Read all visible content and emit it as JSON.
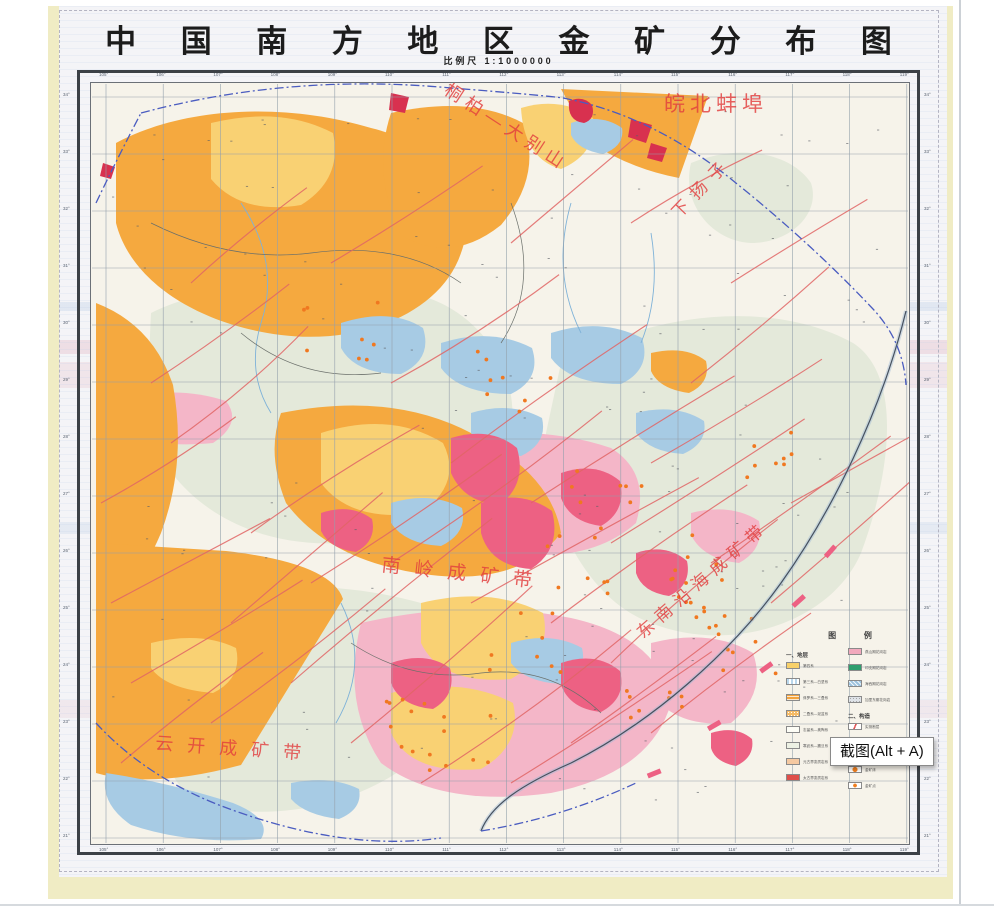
{
  "page": {
    "title": "中 国 南 方 地 区 金 矿 分 布 图",
    "scale_label": "比例尺 1:1000000"
  },
  "map_labels": {
    "wanbei": "皖北蚌埠",
    "tongbai": "桐柏—大别山",
    "xiayangzi": "下扬子",
    "nanling": "南岭成矿带",
    "dongnan": "东南沿海成矿带",
    "yunkai": "云开成矿带"
  },
  "graticule": {
    "lon": [
      "105°",
      "106°",
      "107°",
      "108°",
      "109°",
      "110°",
      "111°",
      "112°",
      "113°",
      "114°",
      "115°",
      "116°",
      "117°",
      "118°",
      "119°"
    ],
    "lat": [
      "34°",
      "33°",
      "32°",
      "31°",
      "30°",
      "29°",
      "28°",
      "27°",
      "26°",
      "25°",
      "24°",
      "23°",
      "22°",
      "21°"
    ]
  },
  "legend": {
    "title": "图 例",
    "left_sections": [
      {
        "header": "一、地层",
        "items": [
          {
            "swatch": "q",
            "label": "第四系"
          },
          {
            "swatch": "tertiary",
            "label": "第三系—白垩系"
          },
          {
            "swatch": "jura",
            "label": "侏罗系—三叠系"
          },
          {
            "swatch": "perm",
            "label": "二叠系—泥盆系"
          },
          {
            "swatch": "sil",
            "label": "志留系—奥陶系"
          },
          {
            "swatch": "camb",
            "label": "寒武系—震旦系"
          },
          {
            "swatch": "prot",
            "label": "元古界变质岩系"
          },
          {
            "swatch": "arch",
            "label": "太古界变质岩系"
          }
        ]
      }
    ],
    "right_sections": [
      {
        "header": "",
        "items": [
          {
            "swatch": "granite-pink",
            "label": "燕山期花岗岩"
          },
          {
            "swatch": "granite-green",
            "label": "印支期花岗岩"
          },
          {
            "swatch": "granite-blue",
            "label": "海西期花岗岩"
          },
          {
            "swatch": "granite-gray",
            "label": "加里东期花岗岩"
          }
        ]
      },
      {
        "header": "二、构造",
        "items": [
          {
            "swatch": "fault-solid",
            "label": "实测断层"
          },
          {
            "swatch": "fault-dashed",
            "label": "推测断层"
          }
        ]
      },
      {
        "header": "三、矿产",
        "items": [
          {
            "swatch": "gold-deposit",
            "label": "金矿床"
          },
          {
            "swatch": "gold-point",
            "label": "金矿点"
          }
        ]
      }
    ]
  },
  "tooltip": {
    "label": "截图(Alt + A)"
  },
  "colors": {
    "orange": "#f5a93f",
    "yellow": "#f9d173",
    "blue": "#a7cbe4",
    "pink": "#f4b6c8",
    "hot_pink": "#ed6183",
    "crimson": "#d8314f",
    "fault_red": "#e06565",
    "boundary_blue": "#4a5cc0",
    "page_edge_yellow": "#f0ecc4"
  }
}
